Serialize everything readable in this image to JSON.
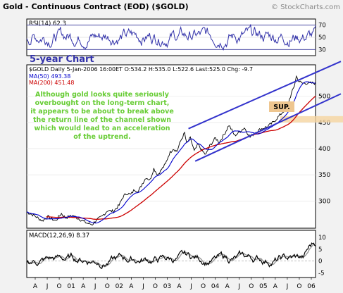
{
  "header": {
    "title": "Gold - Continuous Contract (EOD) ($GOLD)",
    "watermark": "© StockCharts.com"
  },
  "chart_data": [
    {
      "type": "line",
      "panel": "rsi",
      "label": "RSI(14) 62.3",
      "ylim": [
        20,
        80
      ],
      "ticks": [
        30,
        50,
        70
      ],
      "reference_lines": [
        30,
        70
      ],
      "description_series": "oscillating RSI between ~30 and ~78",
      "annotation": "5-year Chart"
    },
    {
      "type": "bar",
      "panel": "price",
      "style": "OHLC",
      "info_line": "$GOLD Daily     5-Jan-2006 16:00ET  O:534.2  H:535.0  L:522.6  Last:525.0  Chg: -9.7",
      "legend": [
        {
          "name": "MA(50) 493.38",
          "color": "#0000cc"
        },
        {
          "name": "MA(200) 451.48",
          "color": "#cc0000"
        }
      ],
      "y_ticks": [
        300,
        350,
        400,
        450,
        500
      ],
      "ylim": [
        248,
        560
      ],
      "x_ticks": [
        "A",
        "J",
        "O",
        "01",
        "A",
        "J",
        "O",
        "02",
        "A",
        "J",
        "O",
        "03",
        "A",
        "J",
        "O",
        "04",
        "A",
        "J",
        "O",
        "05",
        "A",
        "J",
        "O",
        "06"
      ],
      "anchor_prices": [
        [
          0,
          279
        ],
        [
          8,
          272
        ],
        [
          16,
          262
        ],
        [
          22,
          270
        ],
        [
          26,
          266
        ],
        [
          30,
          262
        ],
        [
          36,
          276
        ],
        [
          40,
          268
        ],
        [
          48,
          272
        ],
        [
          56,
          264
        ],
        [
          62,
          258
        ],
        [
          68,
          255
        ],
        [
          72,
          263
        ],
        [
          78,
          270
        ],
        [
          84,
          282
        ],
        [
          90,
          280
        ],
        [
          96,
          292
        ],
        [
          100,
          308
        ],
        [
          104,
          315
        ],
        [
          108,
          312
        ],
        [
          112,
          322
        ],
        [
          116,
          318
        ],
        [
          120,
          333
        ],
        [
          124,
          345
        ],
        [
          128,
          340
        ],
        [
          132,
          362
        ],
        [
          136,
          350
        ],
        [
          140,
          360
        ],
        [
          144,
          370
        ],
        [
          148,
          390
        ],
        [
          152,
          400
        ],
        [
          156,
          395
        ],
        [
          160,
          415
        ],
        [
          164,
          430
        ],
        [
          166,
          410
        ],
        [
          170,
          420
        ],
        [
          174,
          395
        ],
        [
          178,
          408
        ],
        [
          182,
          396
        ],
        [
          186,
          388
        ],
        [
          190,
          405
        ],
        [
          196,
          420
        ],
        [
          200,
          412
        ],
        [
          206,
          430
        ],
        [
          210,
          445
        ],
        [
          216,
          425
        ],
        [
          220,
          430
        ],
        [
          226,
          440
        ],
        [
          232,
          422
        ],
        [
          238,
          432
        ],
        [
          244,
          438
        ],
        [
          250,
          442
        ],
        [
          256,
          450
        ],
        [
          262,
          462
        ],
        [
          266,
          470
        ],
        [
          270,
          478
        ],
        [
          274,
          500
        ],
        [
          278,
          520
        ],
        [
          280,
          538
        ],
        [
          283,
          528
        ],
        [
          286,
          525
        ]
      ],
      "channel": {
        "upper": [
          [
            168,
            438
          ],
          [
            300,
            545
          ]
        ],
        "lower": [
          [
            175,
            376
          ],
          [
            300,
            483
          ]
        ]
      },
      "annotations": [
        "Although gold looks quite seriously",
        "overbought on the long-term chart,",
        "it appears to be about to break above",
        "the return line of the channel shown",
        "which would lead to an acceleration",
        "of the uptrend."
      ],
      "support_label": "SUP.",
      "support_band": [
        450,
        462
      ],
      "support_band_color": "#f5d5a0",
      "colors": {
        "price": "#000000",
        "ma50": "#0000cc",
        "ma200": "#cc0000",
        "channel": "#3333cc",
        "annotation_text": "#66cc33",
        "support_label_bg": "#eec690"
      }
    },
    {
      "type": "line",
      "panel": "macd",
      "label": "MACD(12,26,9) 8.37",
      "ylim": [
        -7,
        13
      ],
      "ticks": [
        -5,
        0,
        5,
        10
      ],
      "series": [
        {
          "name": "MACD",
          "color": "#000000"
        },
        {
          "name": "Signal",
          "color": "#999999"
        }
      ]
    }
  ]
}
